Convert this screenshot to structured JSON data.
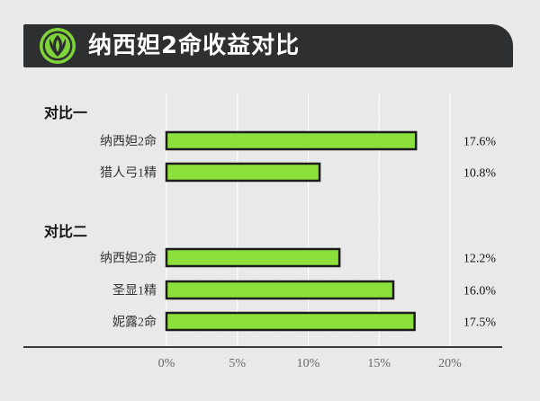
{
  "header": {
    "title": "纳西妲2命收益对比",
    "emblem_icon": "dendro-emblem-icon"
  },
  "chart_data": {
    "type": "bar",
    "orientation": "horizontal",
    "xlim": [
      0,
      20
    ],
    "grid": true,
    "bar_color": "#8be03c",
    "bar_outline": "#1d1d1d",
    "ticks": [
      "0%",
      "5%",
      "10%",
      "15%",
      "20%"
    ],
    "groups": [
      {
        "label": "对比一",
        "bars": [
          {
            "category": "纳西妲2命",
            "value": 17.6,
            "value_label": "17.6%"
          },
          {
            "category": "猎人弓1精",
            "value": 10.8,
            "value_label": "10.8%"
          }
        ]
      },
      {
        "label": "对比二",
        "bars": [
          {
            "category": "纳西妲2命",
            "value": 12.2,
            "value_label": "12.2%"
          },
          {
            "category": "圣显1精",
            "value": 16.0,
            "value_label": "16.0%"
          },
          {
            "category": "妮露2命",
            "value": 17.5,
            "value_label": "17.5%"
          }
        ]
      }
    ]
  }
}
